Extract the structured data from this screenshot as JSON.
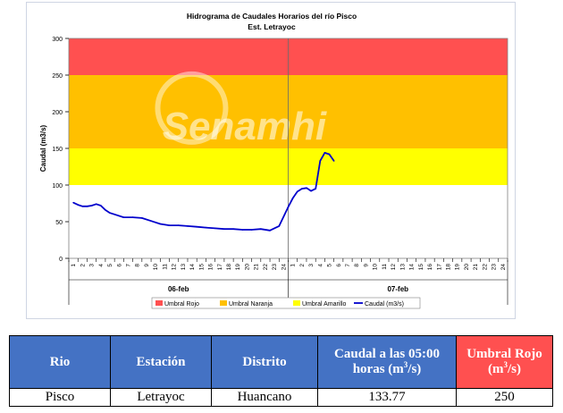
{
  "chart_data": {
    "type": "line",
    "title": "Hidrograma de Caudales Horarios del río Pisco",
    "subtitle": "Est. Letrayoc",
    "ylabel": "Caudal  (m3/s)",
    "ylim": [
      0,
      300
    ],
    "yticks": [
      0,
      50,
      100,
      150,
      200,
      250,
      300
    ],
    "xticks": [
      "1",
      "2",
      "3",
      "4",
      "5",
      "6",
      "7",
      "8",
      "9",
      "10",
      "11",
      "12",
      "13",
      "14",
      "15",
      "16",
      "17",
      "18",
      "19",
      "20",
      "21",
      "22",
      "23",
      "24",
      "1",
      "2",
      "3",
      "4",
      "5",
      "6",
      "7",
      "8",
      "9",
      "10",
      "11",
      "12",
      "13",
      "14",
      "15",
      "16",
      "17",
      "18",
      "19",
      "20",
      "21",
      "22",
      "23",
      "24"
    ],
    "day_labels": [
      "06-feb",
      "07-feb"
    ],
    "grid": false,
    "legend_position": "bottom",
    "watermark": "Senamhi",
    "bands": [
      {
        "name": "Umbral Rojo",
        "from": 250,
        "to": 300,
        "color": "#ff5050"
      },
      {
        "name": "Umbral Naranja",
        "from": 150,
        "to": 250,
        "color": "#ffc000"
      },
      {
        "name": "Umbral Amarillo",
        "from": 100,
        "to": 150,
        "color": "#ffff00"
      }
    ],
    "series": [
      {
        "name": "Caudal (m3/s)",
        "color": "#0000cc",
        "x": [
          0.5,
          1,
          1.5,
          2,
          2.5,
          3,
          3.5,
          4,
          4.5,
          5,
          6,
          7,
          8,
          9,
          10,
          11,
          12,
          13,
          14,
          15,
          16,
          17,
          18,
          19,
          20,
          21,
          22,
          23,
          24,
          24.5,
          25,
          25.5,
          26,
          26.5,
          27,
          27.5,
          28,
          28.5,
          29
        ],
        "values": [
          76,
          73,
          71,
          71,
          72,
          74,
          72,
          66,
          62,
          60,
          56,
          56,
          55,
          51,
          47,
          45,
          45,
          44,
          43,
          42,
          41,
          40,
          40,
          39,
          39,
          40,
          38,
          44,
          70,
          82,
          91,
          95,
          96,
          92,
          95,
          133,
          144,
          142,
          133
        ]
      }
    ]
  },
  "table": {
    "headers": [
      "Rio",
      "Estación",
      "Distrito",
      "Caudal a las 05:00 horas (m",
      "Umbral Rojo (m"
    ],
    "header_sup": "3",
    "header_suffix": "/s)",
    "row": [
      "Pisco",
      "Letrayoc",
      "Huancano",
      "133.77",
      "250"
    ],
    "header_colors": [
      "#4472c4",
      "#4472c4",
      "#4472c4",
      "#4472c4",
      "#ff5050"
    ]
  }
}
